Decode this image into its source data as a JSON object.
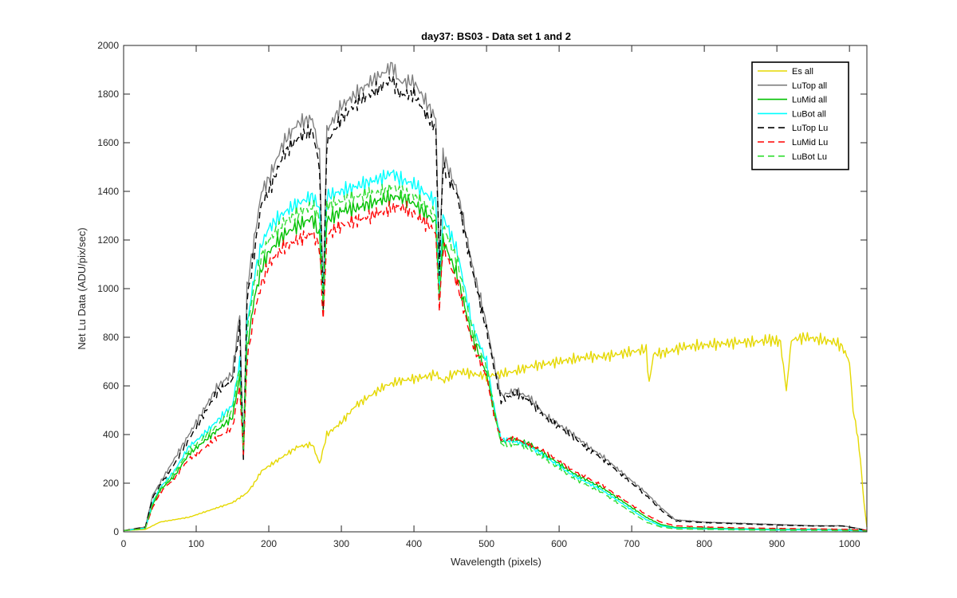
{
  "chart_data": {
    "type": "line",
    "title": "day37: BS03 - Data set 1 and 2",
    "xlabel": "Wavelength (pixels)",
    "ylabel": "Net Lu Data (ADU/pix/sec)",
    "xlim": [
      0,
      1024
    ],
    "ylim": [
      0,
      2000
    ],
    "xticks": [
      0,
      100,
      200,
      300,
      400,
      500,
      600,
      700,
      800,
      900,
      1000
    ],
    "yticks": [
      0,
      200,
      400,
      600,
      800,
      1000,
      1200,
      1400,
      1600,
      1800,
      2000
    ],
    "grid": false,
    "legend_position": "top-right",
    "series": [
      {
        "name": "Es  all",
        "color": "#e5d800",
        "dash": "none",
        "x": [
          0,
          30,
          40,
          50,
          70,
          90,
          110,
          130,
          150,
          160,
          170,
          180,
          190,
          200,
          220,
          240,
          260,
          270,
          280,
          300,
          320,
          340,
          360,
          380,
          400,
          420,
          430,
          440,
          460,
          480,
          500,
          520,
          540,
          560,
          580,
          600,
          620,
          640,
          660,
          680,
          700,
          720,
          724,
          730,
          750,
          770,
          790,
          810,
          830,
          850,
          870,
          890,
          905,
          913,
          920,
          940,
          960,
          980,
          990,
          1000,
          1005,
          1010,
          1015,
          1020,
          1024
        ],
        "y": [
          5,
          10,
          25,
          40,
          50,
          60,
          80,
          100,
          120,
          140,
          160,
          200,
          250,
          270,
          310,
          350,
          360,
          280,
          400,
          450,
          520,
          560,
          600,
          620,
          630,
          640,
          650,
          620,
          660,
          650,
          640,
          650,
          660,
          680,
          690,
          700,
          710,
          720,
          720,
          730,
          740,
          750,
          610,
          730,
          740,
          760,
          765,
          770,
          775,
          780,
          780,
          790,
          780,
          580,
          790,
          800,
          790,
          780,
          760,
          700,
          500,
          420,
          300,
          120,
          20
        ]
      },
      {
        "name": "LuTop  all",
        "color": "#808080",
        "dash": "none",
        "x": [
          0,
          30,
          40,
          50,
          70,
          90,
          110,
          130,
          150,
          160,
          165,
          170,
          180,
          190,
          200,
          220,
          240,
          260,
          270,
          275,
          280,
          300,
          320,
          340,
          360,
          370,
          380,
          400,
          420,
          430,
          435,
          440,
          460,
          480,
          500,
          510,
          520,
          540,
          560,
          580,
          600,
          620,
          640,
          660,
          680,
          700,
          720,
          740,
          760,
          800,
          850,
          900,
          950,
          990,
          1010,
          1024
        ],
        "y": [
          5,
          20,
          150,
          200,
          300,
          400,
          500,
          600,
          650,
          900,
          300,
          1000,
          1200,
          1400,
          1450,
          1600,
          1680,
          1700,
          1550,
          950,
          1650,
          1750,
          1800,
          1850,
          1890,
          1920,
          1850,
          1850,
          1750,
          1700,
          1100,
          1550,
          1400,
          1100,
          850,
          700,
          560,
          580,
          550,
          480,
          440,
          400,
          350,
          310,
          260,
          210,
          160,
          100,
          50,
          40,
          35,
          30,
          25,
          25,
          15,
          5
        ]
      },
      {
        "name": "LuMid  all",
        "color": "#00c000",
        "dash": "none",
        "x": [
          0,
          30,
          40,
          50,
          70,
          90,
          110,
          130,
          150,
          160,
          165,
          170,
          180,
          190,
          200,
          220,
          240,
          260,
          270,
          275,
          280,
          300,
          320,
          340,
          360,
          380,
          400,
          420,
          430,
          435,
          440,
          460,
          480,
          500,
          510,
          520,
          540,
          560,
          580,
          600,
          620,
          640,
          660,
          680,
          700,
          720,
          740,
          760,
          800,
          850,
          900,
          950,
          1000,
          1024
        ],
        "y": [
          5,
          15,
          110,
          170,
          230,
          320,
          370,
          420,
          470,
          640,
          340,
          750,
          960,
          1080,
          1150,
          1220,
          1260,
          1290,
          1220,
          920,
          1280,
          1320,
          1330,
          1350,
          1370,
          1380,
          1350,
          1300,
          1270,
          950,
          1200,
          1050,
          800,
          650,
          500,
          370,
          380,
          360,
          320,
          280,
          240,
          210,
          180,
          140,
          100,
          60,
          30,
          18,
          15,
          12,
          10,
          10,
          8,
          5
        ]
      },
      {
        "name": "LuBot  all",
        "color": "#00ffff",
        "dash": "none",
        "x": [
          0,
          30,
          40,
          50,
          70,
          90,
          110,
          130,
          150,
          160,
          165,
          170,
          180,
          190,
          200,
          220,
          240,
          260,
          270,
          275,
          280,
          300,
          320,
          340,
          360,
          370,
          380,
          400,
          420,
          430,
          435,
          440,
          460,
          480,
          500,
          510,
          520,
          540,
          560,
          580,
          600,
          620,
          640,
          660,
          680,
          700,
          720,
          740,
          760,
          800,
          850,
          900,
          950,
          1000,
          1024
        ],
        "y": [
          5,
          15,
          120,
          180,
          250,
          350,
          400,
          460,
          520,
          700,
          350,
          850,
          1050,
          1180,
          1250,
          1310,
          1350,
          1380,
          1330,
          950,
          1380,
          1400,
          1420,
          1440,
          1460,
          1480,
          1450,
          1430,
          1380,
          1360,
          1000,
          1300,
          1150,
          850,
          700,
          520,
          380,
          370,
          350,
          310,
          270,
          230,
          200,
          170,
          130,
          90,
          50,
          25,
          15,
          12,
          10,
          8,
          8,
          6,
          4
        ]
      },
      {
        "name": "LuTop  Lu",
        "color": "#000000",
        "dash": "8,5",
        "x": [
          0,
          30,
          40,
          50,
          70,
          90,
          110,
          130,
          150,
          160,
          165,
          170,
          180,
          190,
          200,
          220,
          240,
          260,
          270,
          275,
          280,
          300,
          320,
          340,
          360,
          370,
          380,
          400,
          420,
          430,
          435,
          440,
          460,
          480,
          500,
          510,
          520,
          540,
          560,
          580,
          600,
          620,
          640,
          660,
          680,
          700,
          720,
          740,
          760,
          800,
          850,
          900,
          950,
          990,
          1010,
          1024
        ],
        "y": [
          5,
          20,
          140,
          190,
          280,
          380,
          480,
          580,
          620,
          850,
          300,
          950,
          1150,
          1350,
          1400,
          1550,
          1620,
          1650,
          1500,
          920,
          1600,
          1700,
          1760,
          1800,
          1840,
          1860,
          1800,
          1800,
          1700,
          1660,
          1080,
          1500,
          1380,
          1080,
          830,
          680,
          540,
          570,
          540,
          470,
          430,
          390,
          340,
          300,
          250,
          200,
          150,
          90,
          45,
          38,
          33,
          28,
          24,
          24,
          14,
          5
        ]
      },
      {
        "name": "LuMid  Lu",
        "color": "#ff0000",
        "dash": "8,5",
        "x": [
          0,
          30,
          40,
          50,
          70,
          90,
          110,
          130,
          150,
          160,
          165,
          170,
          180,
          190,
          200,
          220,
          240,
          260,
          270,
          275,
          280,
          300,
          320,
          340,
          360,
          380,
          400,
          420,
          430,
          435,
          440,
          460,
          480,
          500,
          510,
          520,
          540,
          560,
          580,
          600,
          620,
          640,
          660,
          680,
          700,
          720,
          740,
          760,
          800,
          850,
          900,
          950,
          1000,
          1024
        ],
        "y": [
          5,
          15,
          100,
          160,
          220,
          300,
          340,
          390,
          430,
          600,
          320,
          700,
          900,
          1020,
          1100,
          1170,
          1200,
          1230,
          1170,
          870,
          1220,
          1260,
          1280,
          1300,
          1320,
          1340,
          1310,
          1260,
          1230,
          920,
          1170,
          1020,
          780,
          640,
          490,
          380,
          380,
          360,
          330,
          290,
          250,
          220,
          190,
          150,
          110,
          70,
          40,
          25,
          20,
          16,
          14,
          12,
          10,
          6
        ]
      },
      {
        "name": "LuBot  Lu",
        "color": "#33dd33",
        "dash": "8,5",
        "x": [
          0,
          30,
          40,
          50,
          70,
          90,
          110,
          130,
          150,
          160,
          165,
          170,
          180,
          190,
          200,
          220,
          240,
          260,
          270,
          275,
          280,
          300,
          320,
          340,
          360,
          370,
          380,
          400,
          420,
          430,
          435,
          440,
          460,
          480,
          500,
          510,
          520,
          540,
          560,
          580,
          600,
          620,
          640,
          660,
          680,
          700,
          720,
          740,
          760,
          800,
          850,
          900,
          950,
          1000,
          1024
        ],
        "y": [
          5,
          14,
          115,
          175,
          240,
          335,
          385,
          440,
          500,
          680,
          340,
          820,
          1020,
          1130,
          1200,
          1270,
          1310,
          1340,
          1290,
          930,
          1340,
          1360,
          1380,
          1390,
          1400,
          1420,
          1400,
          1380,
          1330,
          1310,
          970,
          1260,
          1110,
          830,
          680,
          510,
          360,
          360,
          340,
          300,
          260,
          220,
          190,
          160,
          120,
          80,
          40,
          20,
          12,
          10,
          8,
          6,
          6,
          5,
          4
        ]
      }
    ]
  }
}
